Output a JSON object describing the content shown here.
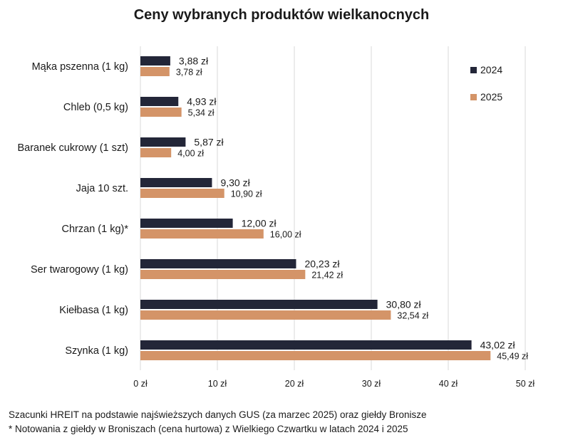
{
  "chart_data": {
    "type": "bar",
    "orientation": "horizontal",
    "title": "Ceny wybranych produktów wielkanocnych",
    "categories": [
      "Mąka pszenna (1 kg)",
      "Chleb (0,5 kg)",
      "Baranek cukrowy (1 szt)",
      "Jaja 10 szt.",
      "Chrzan (1 kg)*",
      "Ser twarogowy (1 kg)",
      "Kiełbasa (1 kg)",
      "Szynka (1 kg)"
    ],
    "series": [
      {
        "name": "2024",
        "color": "#232638",
        "values": [
          3.88,
          4.93,
          5.87,
          9.3,
          12.0,
          20.23,
          30.8,
          43.02
        ],
        "labels": [
          "3,88 zł",
          "4,93 zł",
          "5,87 zł",
          "9,30 zł",
          "12,00 zł",
          "20,23 zł",
          "30,80 zł",
          "43,02 zł"
        ]
      },
      {
        "name": "2025",
        "color": "#D49468",
        "values": [
          3.78,
          5.34,
          4.0,
          10.9,
          16.0,
          21.42,
          32.54,
          45.49
        ],
        "labels": [
          "3,78 zł",
          "5,34 zł",
          "4,00 zł",
          "10,90 zł",
          "16,00 zł",
          "21,42 zł",
          "32,54 zł",
          "45,49 zł"
        ]
      }
    ],
    "xlim": [
      0,
      50
    ],
    "xticks": [
      0,
      10,
      20,
      30,
      40,
      50
    ],
    "xtick_labels": [
      "0 zł",
      "10 zł",
      "20 zł",
      "30 zł",
      "40 zł",
      "50 zł"
    ],
    "grid": "vertical",
    "legend": "top-right"
  },
  "footnotes": [
    "Szacunki HREIT na podstawie najświeższych danych GUS (za marzec 2025) oraz giełdy Bronisze",
    "* Notowania z giełdy w Broniszach (cena hurtowa) z Wielkiego Czwartku w latach 2024 i 2025"
  ]
}
